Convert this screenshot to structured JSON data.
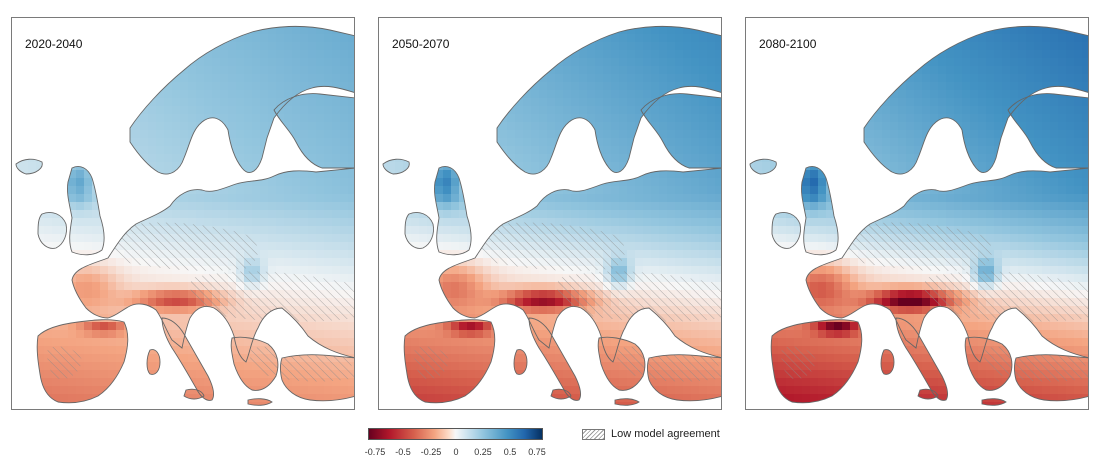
{
  "panels": [
    {
      "title": "2020-2040",
      "intensity": 0.55
    },
    {
      "title": "2050-2070",
      "intensity": 0.8
    },
    {
      "title": "2080-2100",
      "intensity": 1.0
    }
  ],
  "legend": {
    "ticks": [
      "-0.75",
      "-0.5",
      "-0.25",
      "0",
      "0.25",
      "0.5",
      "0.75"
    ],
    "range": [
      -0.75,
      0.75
    ],
    "colors": [
      "#67001f",
      "#b2182b",
      "#d6604d",
      "#f4a582",
      "#f7f7f7",
      "#92c5de",
      "#4393c3",
      "#2166ac",
      "#053061"
    ],
    "hatch_label": "Low model agreement"
  },
  "colors": {
    "border": "#666666",
    "hatch": "#8a8a8a"
  }
}
